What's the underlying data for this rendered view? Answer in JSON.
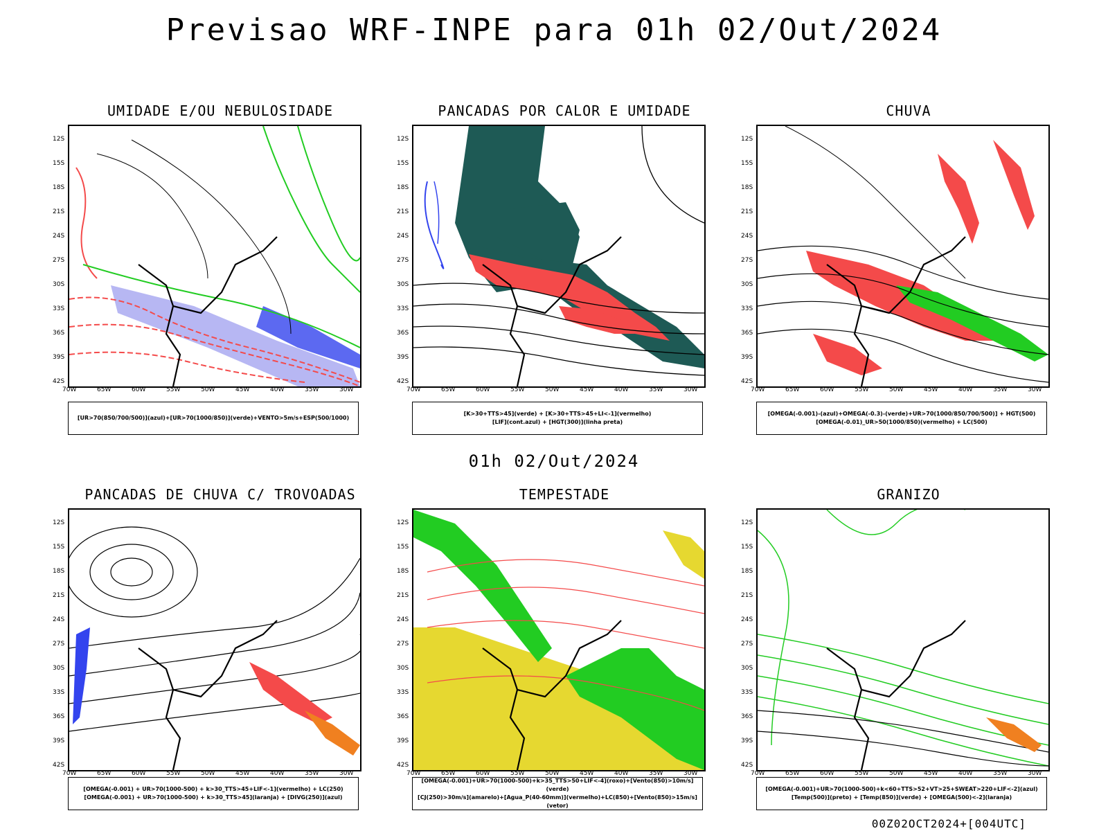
{
  "header": {
    "title": "Previsao WRF-INPE  para 01h 02/Out/2024"
  },
  "middle_label": "01h 02/Out/2024",
  "footer": "00Z02OCT2024+[004UTC]",
  "axes": {
    "lat_labels": [
      "12S",
      "15S",
      "18S",
      "21S",
      "24S",
      "27S",
      "30S",
      "33S",
      "36S",
      "39S",
      "42S"
    ],
    "lon_labels": [
      "70W",
      "65W",
      "60W",
      "55W",
      "50W",
      "45W",
      "40W",
      "35W",
      "30W"
    ]
  },
  "colors": {
    "red": "#f44a4a",
    "green": "#22cc22",
    "blue": "#3344ee",
    "yellow": "#e6d830",
    "orange": "#f08020",
    "teal": "#1e5a55",
    "lilac": "#9999ee"
  },
  "panels": [
    {
      "title": "UMIDADE E/OU NEBULOSIDADE",
      "legend": [
        "[UR>70(850/700/500)](azul)+[UR>70(1000/850)](verde)+VENTO>5m/s+ESP(500/1000)"
      ]
    },
    {
      "title": "PANCADAS POR CALOR E UMIDADE",
      "legend": [
        "[K>30+TTS>45](verde) + [K>30+TTS>45+LI<-1](vermelho)",
        "[LIF](cont.azul) + [HGT(300)](linha preta)"
      ]
    },
    {
      "title": "CHUVA",
      "legend": [
        "[OMEGA(-0.001)-(azul)+OMEGA(-0.3)-(verde)+UR>70(1000/850/700/500)] + HGT(500)",
        "[OMEGA(-0.01)_UR>50(1000/850)(vermelho) + LC(500)"
      ]
    },
    {
      "title": "PANCADAS DE CHUVA C/ TROVOADAS",
      "legend": [
        "[OMEGA(-0.001) + UR>70(1000-500) + k>30_TTS>45+LIF<-1](vermelho) + LC(250)",
        "[OMEGA(-0.001) + UR>70(1000-500) + k>30_TTS>45](laranja) + [DIVG(250)](azul)"
      ]
    },
    {
      "title": "TEMPESTADE",
      "legend": [
        "[OMEGA(-0.001)+UR>70(1000-500)+k>35_TTS>50+LIF<-4](roxo)+[Vento(850)>10m/s](verde)",
        "[CJ(250)>30m/s](amarelo)+[Agua_P(40-60mm)](vermelho)+LC(850)+[Vento(850)>15m/s](vetor)"
      ]
    },
    {
      "title": "GRANIZO",
      "legend": [
        "[OMEGA(-0.001)+UR>70(1000-500)+k<60+TTS>52+VT>25+SWEAT>220+LIF<-2](azul)",
        "[Temp(500)](preto) + [Temp(850)](verde) + [OMEGA(500)<-2](laranja)"
      ]
    }
  ]
}
